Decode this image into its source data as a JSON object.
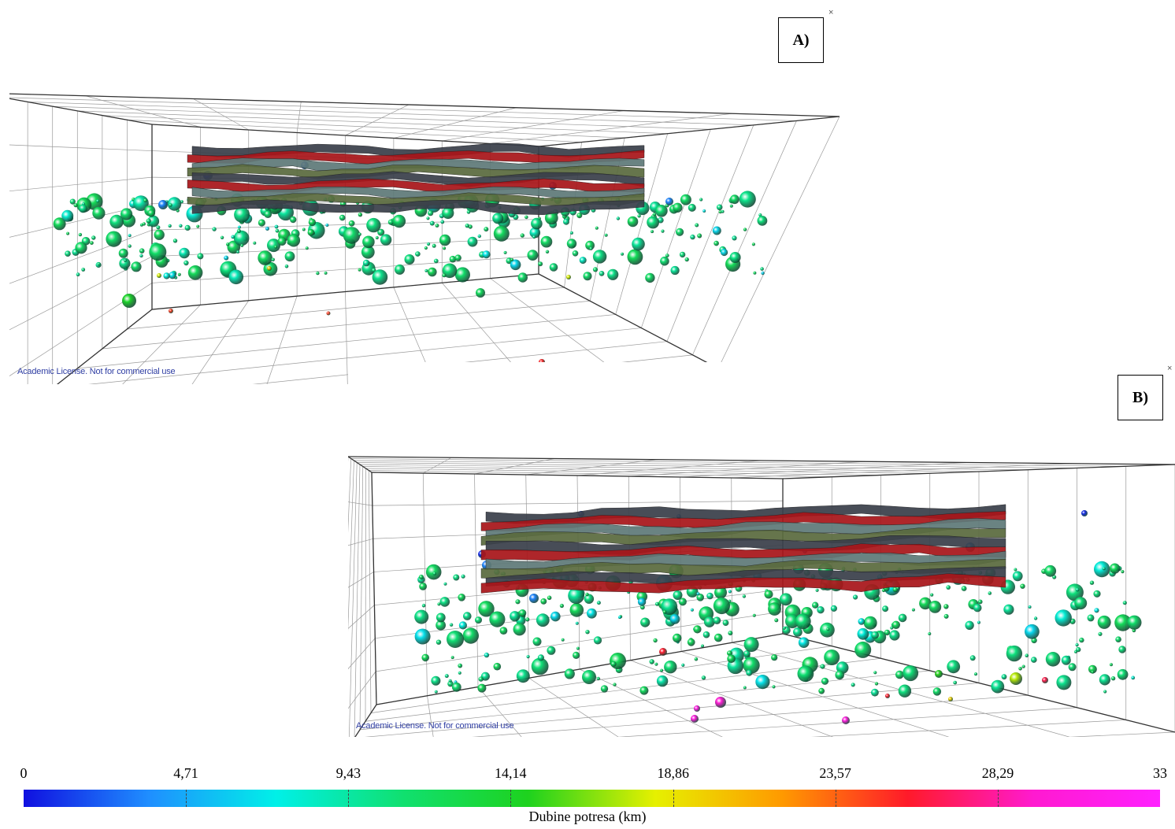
{
  "panels": [
    {
      "id": "A",
      "label": "A)",
      "license": "Academic License. Not for commercial use",
      "close_glyph": "×"
    },
    {
      "id": "B",
      "label": "B)",
      "license": "Academic License. Not for commercial use",
      "close_glyph": "×"
    }
  ],
  "colorbar": {
    "title": "Dubine potresa (km)",
    "min": 0,
    "max": 33,
    "ticks": [
      "0",
      "4,71",
      "9,43",
      "14,14",
      "18,86",
      "23,57",
      "28,29",
      "33"
    ],
    "tick_values": [
      0,
      4.71,
      9.43,
      14.14,
      18.86,
      23.57,
      28.29,
      33
    ],
    "colors": [
      "#1010e0",
      "#1f8fff",
      "#00f0e8",
      "#10e070",
      "#1ed21e",
      "#e6f000",
      "#ff9a00",
      "#ff1a2a",
      "#ff1ad0",
      "#ff20ff"
    ]
  },
  "surfaces": {
    "colors": [
      "#3a3f4a",
      "#a8161a",
      "#5f7a78",
      "#5a6b3e"
    ]
  }
}
